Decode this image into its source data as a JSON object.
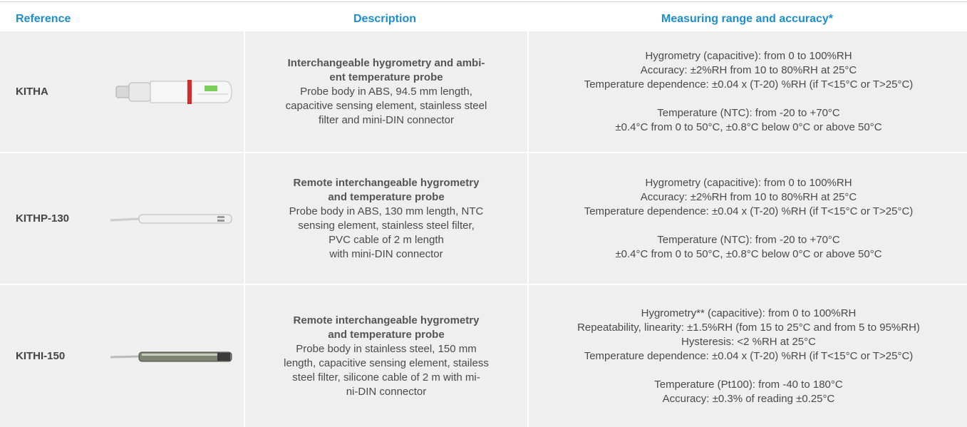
{
  "header": {
    "reference": "Reference",
    "description": "Description",
    "range": "Measuring range and accuracy*"
  },
  "rows": [
    {
      "reference": "KITHA",
      "description": {
        "title": [
          "Interchangeable hygrometry and ambi-",
          "ent temperature probe"
        ],
        "body": [
          "Probe body in ABS, 94.5 mm length,",
          "capacitive sensing element, stainless steel",
          "filter and mini-DIN connector"
        ]
      },
      "range": [
        [
          "Hygrometry (capacitive): from 0 to 100%RH",
          "Accuracy: ±2%RH from 10 to 80%RH at 25°C",
          "Temperature dependence: ±0.04 x (T-20) %RH (if T<15°C or T>25°C)"
        ],
        [
          "Temperature (NTC): from -20 to +70°C",
          "±0.4°C from 0 to 50°C, ±0.8°C below 0°C or above 50°C"
        ]
      ]
    },
    {
      "reference": "KITHP-130",
      "description": {
        "title": [
          "Remote interchangeable hygrometry",
          "and temperature probe"
        ],
        "body": [
          "Probe body in ABS, 130 mm length, NTC",
          "sensing element, stainless steel filter,",
          "PVC cable of 2 m length",
          "with mini-DIN connector"
        ]
      },
      "range": [
        [
          "Hygrometry (capacitive): from 0 to 100%RH",
          "Accuracy: ±2%RH from 10 to 80%RH at 25°C",
          "Temperature dependence: ±0.04 x (T-20) %RH (if T<15°C or T>25°C)"
        ],
        [
          "Temperature (NTC): from -20 to +70°C",
          "±0.4°C from 0 to 50°C, ±0.8°C below 0°C or above 50°C"
        ]
      ]
    },
    {
      "reference": "KITHI-150",
      "description": {
        "title": [
          "Remote interchangeable hygrometry",
          "and temperature probe"
        ],
        "body": [
          "Probe body in stainless steel, 150 mm",
          "length, capacitive sensing element, stailess",
          "steel filter, silicone cable of 2 m with mi-",
          "ni-DIN connector"
        ]
      },
      "range": [
        [
          "Hygrometry** (capacitive): from 0 to 100%RH",
          "Repeatability, linearity: ±1.5%RH (fom 15 to 25°C and from 5 to 95%RH)",
          "Hysteresis: <2 %RH at 25°C",
          "Temperature dependence: ±0.04 x (T-20) %RH (if T<15°C or  T>25°C)"
        ],
        [
          "Temperature (Pt100): from -40 to 180°C",
          "Accuracy: ±0.3% of reading ±0.25°C"
        ]
      ]
    }
  ]
}
